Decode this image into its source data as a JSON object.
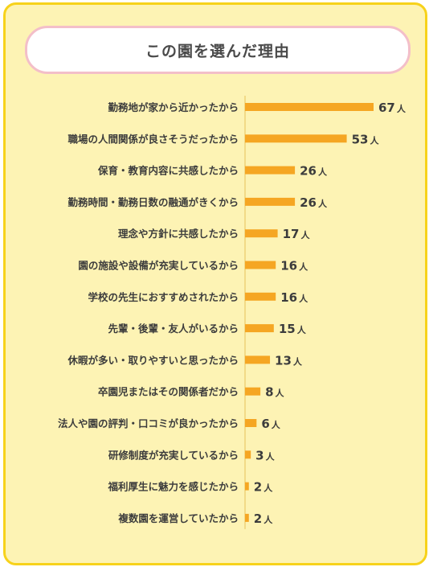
{
  "title": "この園を選んだ理由",
  "colors": {
    "bar": "#f5a623",
    "background": "#fdf3b4",
    "border": "#f7d21b",
    "pill_border": "#f3bfc9",
    "text": "#3c3c3c"
  },
  "chart_data": {
    "type": "bar",
    "orientation": "horizontal",
    "unit": "人",
    "categories": [
      "勤務地が家から近かったから",
      "職場の人間関係が良さそうだったから",
      "保育・教育内容に共感したから",
      "勤務時間・勤務日数の融通がきくから",
      "理念や方針に共感したから",
      "園の施設や設備が充実しているから",
      "学校の先生におすすめされたから",
      "先輩・後輩・友人がいるから",
      "休暇が多い・取りやすいと思ったから",
      "卒園児またはその関係者だから",
      "法人や園の評判・口コミが良かったから",
      "研修制度が充実しているから",
      "福利厚生に魅力を感じたから",
      "複数園を運営していたから"
    ],
    "values": [
      67,
      53,
      26,
      26,
      17,
      16,
      16,
      15,
      13,
      8,
      6,
      3,
      2,
      2
    ],
    "xlim": [
      0,
      67
    ],
    "grid": false,
    "legend": "none"
  }
}
